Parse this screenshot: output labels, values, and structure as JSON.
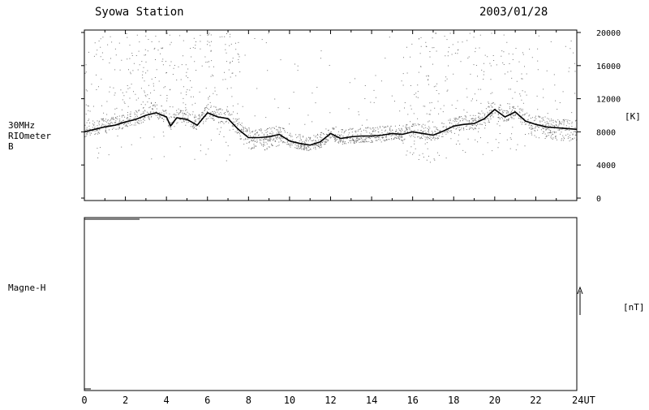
{
  "header": {
    "station": "Syowa Station",
    "date": "2003/01/28"
  },
  "chart_data": [
    {
      "type": "scatter",
      "panel": "riometer",
      "ylabel_lines": [
        "30MHz",
        "RIOmeter",
        "B"
      ],
      "unit": "[K]",
      "xlim": [
        0,
        24
      ],
      "ylim": [
        0,
        20000
      ],
      "yticks": [
        "0",
        "4000",
        "8000",
        "12000",
        "16000",
        "20000"
      ],
      "series": [
        {
          "x": [
            0.0,
            0.5,
            1.0,
            1.5,
            2.0,
            2.5,
            3.0,
            3.5,
            4.0,
            4.2,
            4.5,
            5.0,
            5.5,
            6.0,
            6.5,
            7.0,
            7.5,
            8.0,
            8.5,
            9.0,
            9.5,
            10.0,
            10.5,
            11.0,
            11.5,
            12.0,
            12.5,
            13.0,
            13.5,
            14.0,
            14.5,
            15.0,
            15.5,
            16.0,
            16.5,
            17.0,
            17.5,
            18.0,
            18.5,
            19.0,
            19.5,
            20.0,
            20.5,
            21.0,
            21.5,
            22.0,
            22.5,
            23.0,
            23.5,
            24.0
          ],
          "values": [
            8000,
            8300,
            8600,
            8800,
            9200,
            9500,
            10000,
            10300,
            9800,
            8700,
            9700,
            9500,
            8800,
            10300,
            9800,
            9600,
            8300,
            7300,
            7300,
            7400,
            7700,
            6900,
            6600,
            6400,
            6800,
            7800,
            7200,
            7400,
            7500,
            7500,
            7600,
            7800,
            7700,
            8000,
            7800,
            7600,
            8100,
            8700,
            8900,
            9000,
            9600,
            10700,
            9800,
            10400,
            9300,
            8900,
            8600,
            8500,
            8400,
            8300
          ]
        }
      ]
    },
    {
      "type": "line",
      "panel": "magnetometer",
      "ylabel": "Magne-H",
      "unit": "[nT]",
      "xlim": [
        0,
        24
      ],
      "xticks": [
        "0",
        "2",
        "4",
        "6",
        "8",
        "10",
        "12",
        "14",
        "16",
        "18",
        "20",
        "22",
        "24UT"
      ],
      "series": []
    }
  ]
}
